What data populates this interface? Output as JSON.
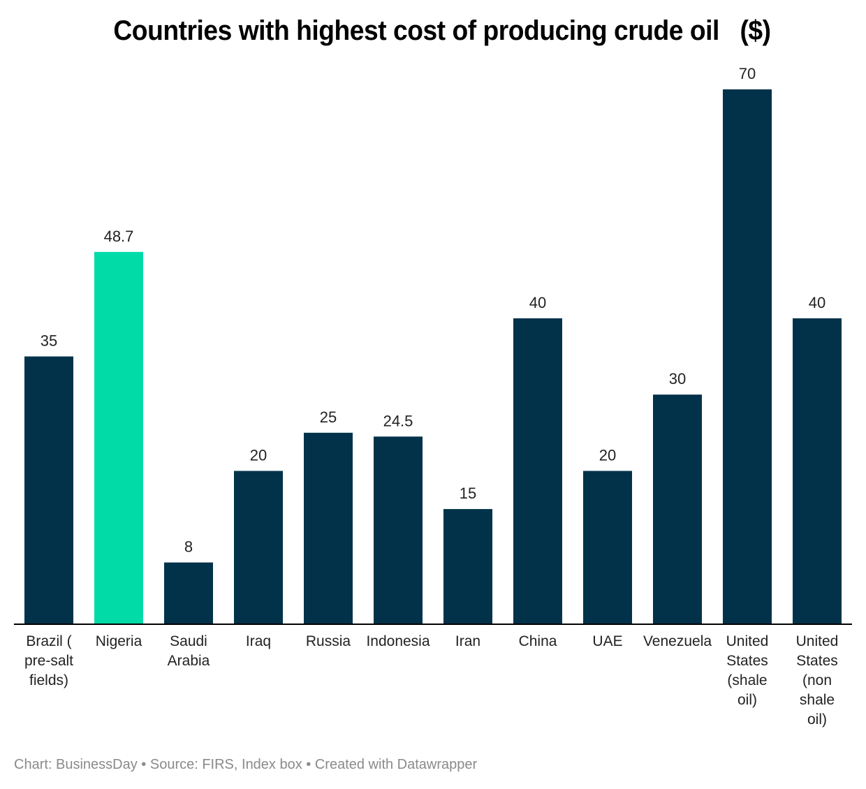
{
  "chart_data": {
    "type": "bar",
    "title": "Countries with highest cost of producing crude oil   ($)",
    "xlabel": "",
    "ylabel": "",
    "ylim": [
      0,
      70
    ],
    "grid": false,
    "legend": "none",
    "categories": [
      "Brazil ( pre-salt fields)",
      "Nigeria",
      "Saudi Arabia",
      "Iraq",
      "Russia",
      "Indonesia",
      "Iran",
      "China",
      "UAE",
      "Venezuela",
      "United States (shale oil)",
      "United States (non shale oil)"
    ],
    "category_label_lines": [
      [
        "Brazil (",
        "pre-salt",
        "fields)"
      ],
      [
        "Nigeria"
      ],
      [
        "Saudi",
        "Arabia"
      ],
      [
        "Iraq"
      ],
      [
        "Russia"
      ],
      [
        "Indonesia"
      ],
      [
        "Iran"
      ],
      [
        "China"
      ],
      [
        "UAE"
      ],
      [
        "Venezuela"
      ],
      [
        "United",
        "States",
        "(shale",
        "oil)"
      ],
      [
        "United",
        "States",
        "(non",
        "shale",
        "oil)"
      ]
    ],
    "values": [
      35,
      48.7,
      8,
      20,
      25,
      24.5,
      15,
      40,
      20,
      30,
      70,
      40
    ],
    "value_labels": [
      "35",
      "48.7",
      "8",
      "20",
      "25",
      "24.5",
      "15",
      "40",
      "20",
      "30",
      "70",
      "40"
    ],
    "highlight_index": 1,
    "colors": {
      "default": "#01324a",
      "highlight": "#00dba8",
      "axis": "#000000"
    }
  },
  "footer": {
    "text": "Chart: BusinessDay • Source: FIRS, Index box • Created with Datawrapper"
  }
}
